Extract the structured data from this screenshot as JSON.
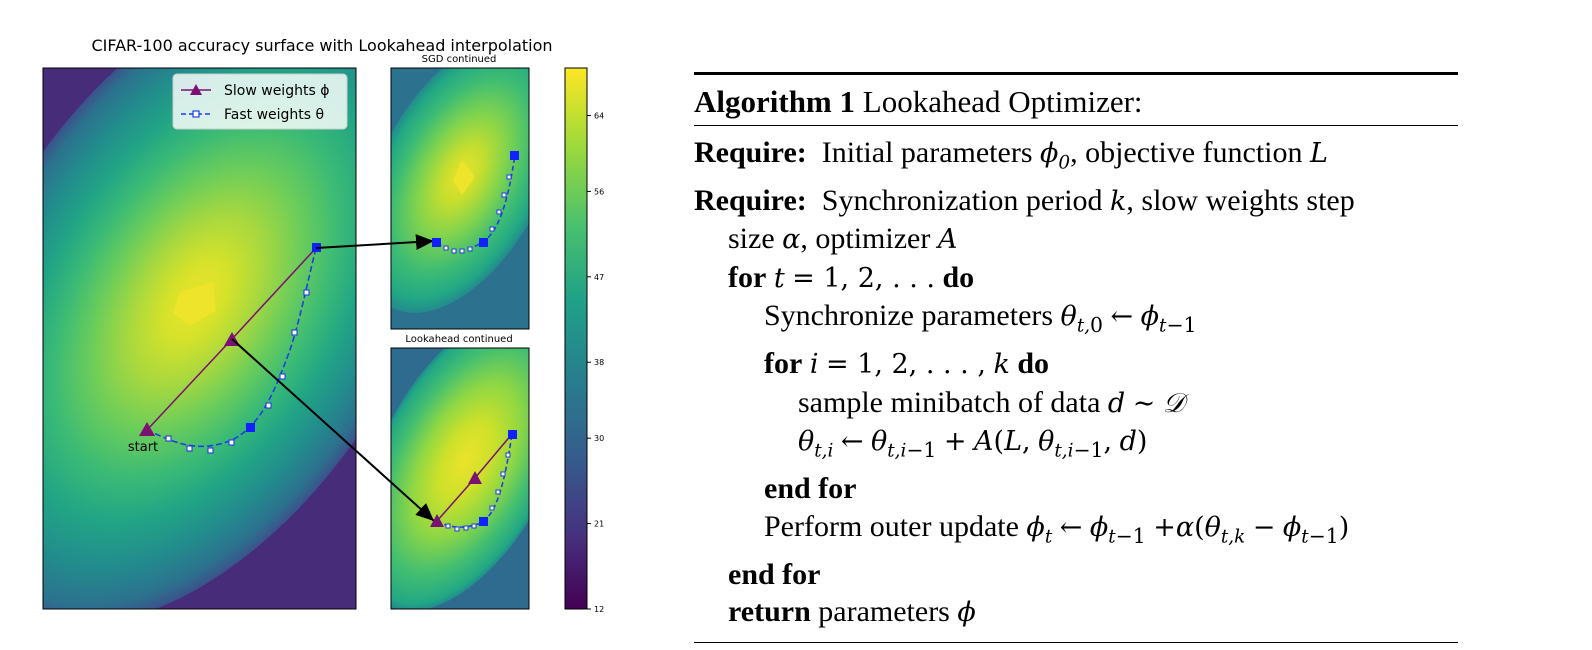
{
  "figure": {
    "title": "CIFAR-100 accuracy surface with Lookahead interpolation",
    "panel_sgd_title": "SGD continued",
    "panel_lookahead_title": "Lookahead continued",
    "start_label": "start",
    "legend": [
      {
        "label": "Slow weights ϕ",
        "color": "#7b1173"
      },
      {
        "label": "Fast weights θ",
        "color": "#1f3fe0"
      }
    ],
    "colorbar_ticks": [
      "64",
      "56",
      "47",
      "38",
      "30",
      "21",
      "12"
    ],
    "colors": {
      "slow": "#7b1173",
      "fast": "#1f3fe0",
      "peak": "#eee32a",
      "low": "#44095a"
    }
  },
  "chart_data": {
    "type": "heatmap",
    "title": "CIFAR-100 accuracy surface with Lookahead interpolation",
    "colorbar": {
      "ticks": [
        64,
        56,
        47,
        38,
        30,
        21,
        12
      ],
      "range": [
        12,
        69
      ],
      "colormap": "viridis"
    },
    "series": [
      {
        "name": "Slow weights ϕ",
        "marker": "triangle"
      },
      {
        "name": "Fast weights θ",
        "marker": "square",
        "line": "dashed"
      }
    ],
    "panels": [
      "main",
      "SGD continued",
      "Lookahead continued"
    ]
  },
  "algorithm": {
    "title_bold": "Algorithm 1",
    "title_rest": "Lookahead Optimizer:",
    "require": "Require:",
    "line1": "Initial parameters",
    "line1b": ", objective function",
    "line2": "Synchronization period",
    "line2b": ", slow weights step",
    "line3": "size",
    "line3b": ", optimizer",
    "kw_for": "for",
    "kw_do": "do",
    "kw_endfor": "end for",
    "kw_return": "return",
    "sync": "Synchronize parameters",
    "sample": "sample minibatch of data",
    "outer": "Perform outer update",
    "ret": "parameters"
  }
}
